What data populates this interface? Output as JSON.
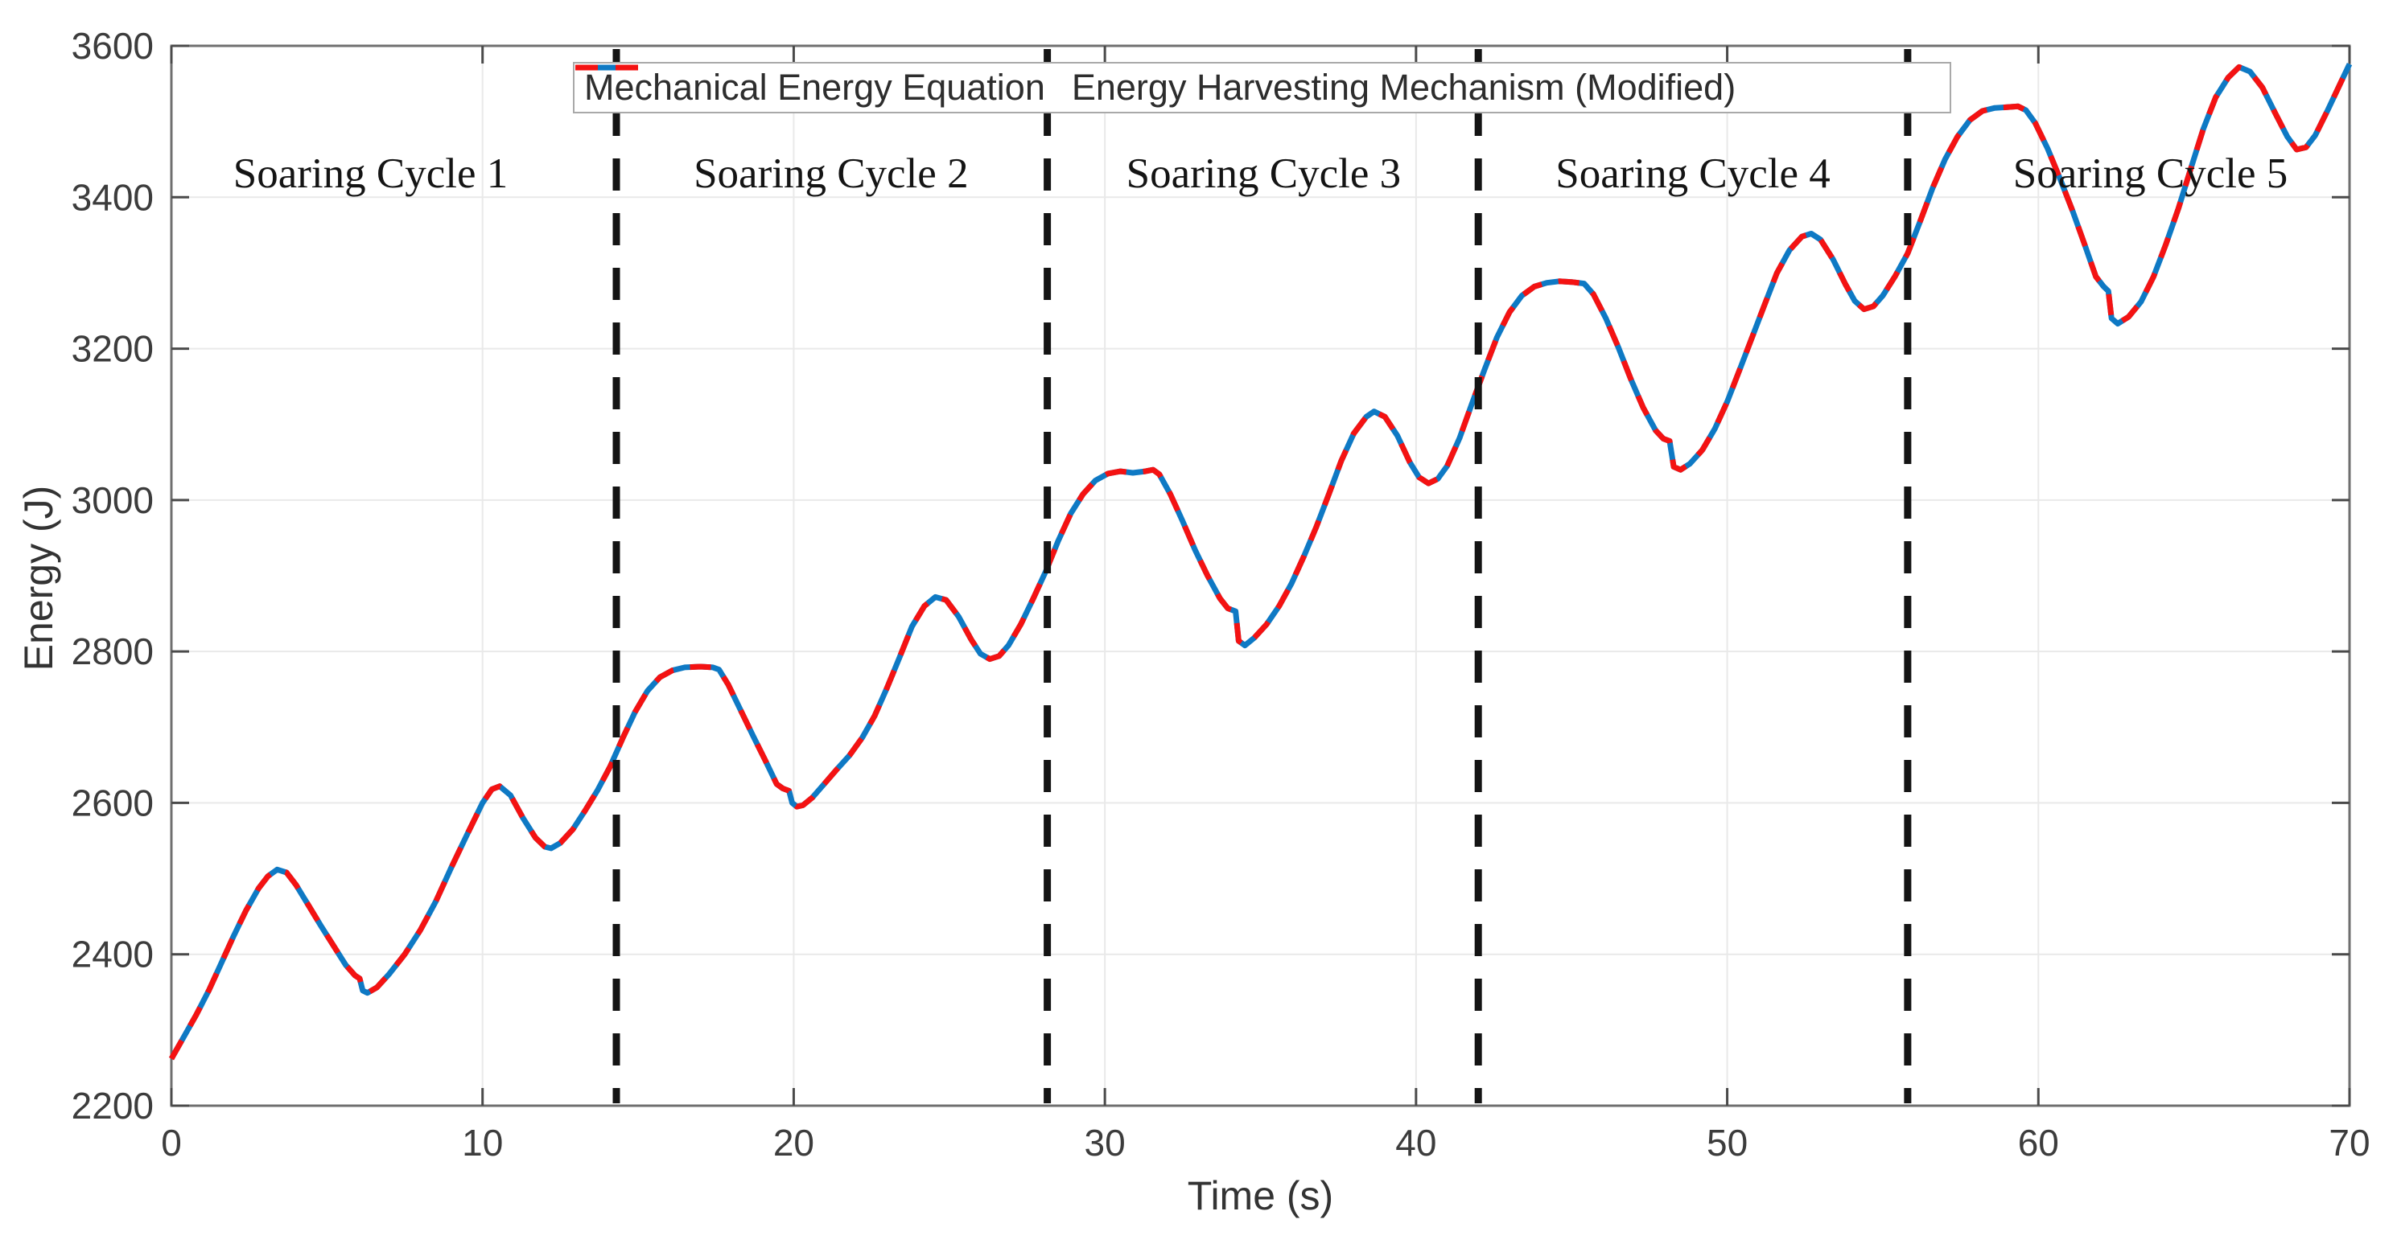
{
  "chart_data": {
    "type": "line",
    "title": "",
    "xlabel": "Time (s)",
    "ylabel": "Energy (J)",
    "xlim": [
      0,
      70
    ],
    "ylim": [
      2200,
      3600
    ],
    "xticks": [
      0,
      10,
      20,
      30,
      40,
      50,
      60,
      70
    ],
    "yticks": [
      2200,
      2400,
      2600,
      2800,
      3000,
      3200,
      3400,
      3600
    ],
    "grid": true,
    "legend": {
      "position": "top-center",
      "entries": [
        {
          "label": "Mechanical Energy Equation",
          "color": "#0e79c4",
          "line_style": "solid"
        },
        {
          "label": "Energy Harvesting Mechanism (Modified)",
          "color": "#f41212",
          "line_style": "dashed"
        }
      ]
    },
    "boundary_line_color": "#141414",
    "cycle_boundaries_s": [
      14.3,
      28.15,
      42.0,
      55.8
    ],
    "annotations": [
      {
        "text": "Soaring Cycle 1",
        "x_s": 6.4
      },
      {
        "text": "Soaring Cycle 2",
        "x_s": 21.2
      },
      {
        "text": "Soaring Cycle 3",
        "x_s": 35.1
      },
      {
        "text": "Soaring Cycle 4",
        "x_s": 48.9
      },
      {
        "text": "Soaring Cycle 5",
        "x_s": 63.6
      }
    ],
    "series": [
      {
        "name": "Mechanical Energy Equation",
        "color": "#0e79c4",
        "line_style": "solid",
        "points_ref": "shared_points"
      },
      {
        "name": "Energy Harvesting Mechanism (Modified)",
        "color": "#f41212",
        "line_style": "dashed",
        "points_ref": "shared_points"
      }
    ],
    "shared_points": [
      [
        0,
        2262
      ],
      [
        0.4,
        2291
      ],
      [
        0.8,
        2320
      ],
      [
        1.2,
        2352
      ],
      [
        1.6,
        2388
      ],
      [
        2.0,
        2424
      ],
      [
        2.4,
        2458
      ],
      [
        2.8,
        2487
      ],
      [
        3.1,
        2503
      ],
      [
        3.4,
        2512
      ],
      [
        3.7,
        2508
      ],
      [
        4.0,
        2492
      ],
      [
        4.4,
        2465
      ],
      [
        4.8,
        2438
      ],
      [
        5.2,
        2412
      ],
      [
        5.6,
        2386
      ],
      [
        5.9,
        2372
      ],
      [
        6.05,
        2368
      ],
      [
        6.15,
        2352
      ],
      [
        6.3,
        2349
      ],
      [
        6.6,
        2356
      ],
      [
        7.0,
        2374
      ],
      [
        7.5,
        2400
      ],
      [
        8.0,
        2432
      ],
      [
        8.5,
        2470
      ],
      [
        9.0,
        2515
      ],
      [
        9.5,
        2558
      ],
      [
        10.0,
        2600
      ],
      [
        10.3,
        2618
      ],
      [
        10.55,
        2622
      ],
      [
        10.9,
        2610
      ],
      [
        11.3,
        2580
      ],
      [
        11.7,
        2554
      ],
      [
        12.0,
        2542
      ],
      [
        12.2,
        2540
      ],
      [
        12.5,
        2547
      ],
      [
        12.9,
        2565
      ],
      [
        13.3,
        2590
      ],
      [
        13.7,
        2617
      ],
      [
        14.1,
        2648
      ],
      [
        14.5,
        2685
      ],
      [
        14.9,
        2720
      ],
      [
        15.3,
        2748
      ],
      [
        15.7,
        2766
      ],
      [
        16.1,
        2775
      ],
      [
        16.5,
        2779
      ],
      [
        17.0,
        2780
      ],
      [
        17.4,
        2779
      ],
      [
        17.6,
        2776
      ],
      [
        17.9,
        2756
      ],
      [
        18.3,
        2722
      ],
      [
        18.7,
        2688
      ],
      [
        19.1,
        2655
      ],
      [
        19.45,
        2625
      ],
      [
        19.65,
        2619
      ],
      [
        19.85,
        2616
      ],
      [
        19.95,
        2600
      ],
      [
        20.1,
        2595
      ],
      [
        20.3,
        2597
      ],
      [
        20.6,
        2607
      ],
      [
        21.0,
        2626
      ],
      [
        21.4,
        2645
      ],
      [
        21.8,
        2663
      ],
      [
        22.2,
        2686
      ],
      [
        22.6,
        2715
      ],
      [
        23.0,
        2752
      ],
      [
        23.4,
        2792
      ],
      [
        23.8,
        2833
      ],
      [
        24.2,
        2860
      ],
      [
        24.55,
        2872
      ],
      [
        24.9,
        2868
      ],
      [
        25.3,
        2846
      ],
      [
        25.7,
        2816
      ],
      [
        26.0,
        2797
      ],
      [
        26.3,
        2790
      ],
      [
        26.6,
        2794
      ],
      [
        26.9,
        2808
      ],
      [
        27.3,
        2836
      ],
      [
        27.7,
        2870
      ],
      [
        28.1,
        2906
      ],
      [
        28.5,
        2946
      ],
      [
        28.9,
        2982
      ],
      [
        29.3,
        3008
      ],
      [
        29.7,
        3026
      ],
      [
        30.1,
        3035
      ],
      [
        30.5,
        3038
      ],
      [
        30.9,
        3036
      ],
      [
        31.3,
        3038
      ],
      [
        31.55,
        3040
      ],
      [
        31.75,
        3034
      ],
      [
        32.1,
        3008
      ],
      [
        32.5,
        2972
      ],
      [
        32.9,
        2934
      ],
      [
        33.3,
        2900
      ],
      [
        33.7,
        2870
      ],
      [
        33.95,
        2857
      ],
      [
        34.2,
        2853
      ],
      [
        34.3,
        2814
      ],
      [
        34.5,
        2808
      ],
      [
        34.8,
        2818
      ],
      [
        35.2,
        2836
      ],
      [
        35.6,
        2860
      ],
      [
        36.0,
        2890
      ],
      [
        36.4,
        2926
      ],
      [
        36.8,
        2965
      ],
      [
        37.2,
        3008
      ],
      [
        37.6,
        3052
      ],
      [
        38.0,
        3088
      ],
      [
        38.4,
        3110
      ],
      [
        38.65,
        3117
      ],
      [
        39.0,
        3110
      ],
      [
        39.4,
        3085
      ],
      [
        39.8,
        3050
      ],
      [
        40.1,
        3030
      ],
      [
        40.4,
        3022
      ],
      [
        40.7,
        3028
      ],
      [
        41.0,
        3045
      ],
      [
        41.4,
        3082
      ],
      [
        41.8,
        3128
      ],
      [
        42.2,
        3172
      ],
      [
        42.6,
        3215
      ],
      [
        43.0,
        3248
      ],
      [
        43.4,
        3270
      ],
      [
        43.8,
        3282
      ],
      [
        44.2,
        3287
      ],
      [
        44.6,
        3289
      ],
      [
        45.0,
        3288
      ],
      [
        45.4,
        3286
      ],
      [
        45.7,
        3272
      ],
      [
        46.1,
        3240
      ],
      [
        46.5,
        3202
      ],
      [
        46.9,
        3160
      ],
      [
        47.3,
        3122
      ],
      [
        47.7,
        3092
      ],
      [
        47.95,
        3081
      ],
      [
        48.15,
        3078
      ],
      [
        48.28,
        3044
      ],
      [
        48.5,
        3040
      ],
      [
        48.8,
        3048
      ],
      [
        49.2,
        3066
      ],
      [
        49.6,
        3094
      ],
      [
        50.0,
        3130
      ],
      [
        50.4,
        3172
      ],
      [
        50.8,
        3215
      ],
      [
        51.2,
        3258
      ],
      [
        51.6,
        3300
      ],
      [
        52.0,
        3330
      ],
      [
        52.4,
        3348
      ],
      [
        52.7,
        3352
      ],
      [
        53.0,
        3344
      ],
      [
        53.4,
        3318
      ],
      [
        53.8,
        3285
      ],
      [
        54.1,
        3263
      ],
      [
        54.4,
        3252
      ],
      [
        54.7,
        3256
      ],
      [
        55.0,
        3270
      ],
      [
        55.4,
        3296
      ],
      [
        55.8,
        3326
      ],
      [
        56.2,
        3368
      ],
      [
        56.6,
        3412
      ],
      [
        57.0,
        3450
      ],
      [
        57.4,
        3480
      ],
      [
        57.8,
        3502
      ],
      [
        58.2,
        3514
      ],
      [
        58.6,
        3518
      ],
      [
        59.0,
        3519
      ],
      [
        59.35,
        3520
      ],
      [
        59.6,
        3515
      ],
      [
        59.9,
        3498
      ],
      [
        60.3,
        3464
      ],
      [
        60.7,
        3424
      ],
      [
        61.1,
        3382
      ],
      [
        61.5,
        3336
      ],
      [
        61.85,
        3295
      ],
      [
        62.1,
        3282
      ],
      [
        62.25,
        3276
      ],
      [
        62.35,
        3240
      ],
      [
        62.55,
        3233
      ],
      [
        62.9,
        3242
      ],
      [
        63.3,
        3262
      ],
      [
        63.7,
        3295
      ],
      [
        64.1,
        3338
      ],
      [
        64.5,
        3385
      ],
      [
        64.9,
        3438
      ],
      [
        65.3,
        3490
      ],
      [
        65.7,
        3532
      ],
      [
        66.1,
        3558
      ],
      [
        66.45,
        3572
      ],
      [
        66.8,
        3566
      ],
      [
        67.2,
        3545
      ],
      [
        67.6,
        3512
      ],
      [
        68.0,
        3480
      ],
      [
        68.3,
        3463
      ],
      [
        68.6,
        3466
      ],
      [
        68.9,
        3482
      ],
      [
        69.3,
        3515
      ],
      [
        69.7,
        3550
      ],
      [
        70.0,
        3576
      ]
    ]
  }
}
